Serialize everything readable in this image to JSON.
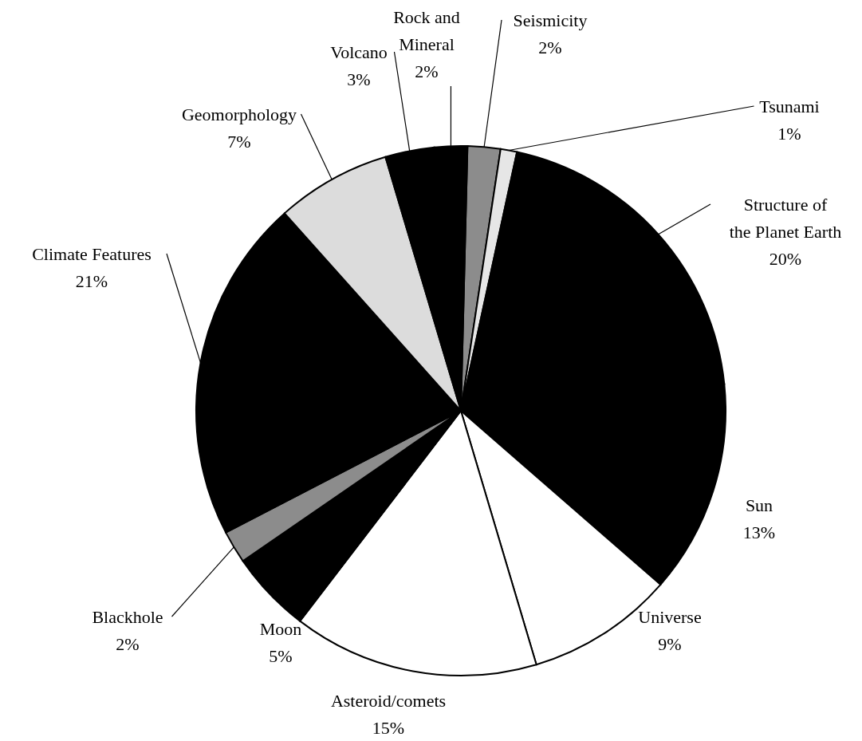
{
  "chart_data": {
    "type": "pie",
    "categories": [
      "Seismicity",
      "Tsunami",
      "Structure of the Planet Earth",
      "Sun",
      "Universe",
      "Asteroid/comets",
      "Moon",
      "Blackhole",
      "Climate Features",
      "Geomorphology",
      "Volcano",
      "Rock and Mineral"
    ],
    "values": [
      2,
      1,
      20,
      13,
      9,
      15,
      5,
      2,
      21,
      7,
      3,
      2
    ],
    "value_labels": [
      "2%",
      "1%",
      "20%",
      "13%",
      "9%",
      "15%",
      "5%",
      "2%",
      "21%",
      "7%",
      "3%",
      "2%"
    ],
    "colors": [
      "#8c8c8c",
      "#e6e6e6",
      "#000000",
      "#000000",
      "#ffffff",
      "#ffffff",
      "#000000",
      "#8c8c8c",
      "#000000",
      "#dcdcdc",
      "#000000",
      "#000000"
    ]
  }
}
